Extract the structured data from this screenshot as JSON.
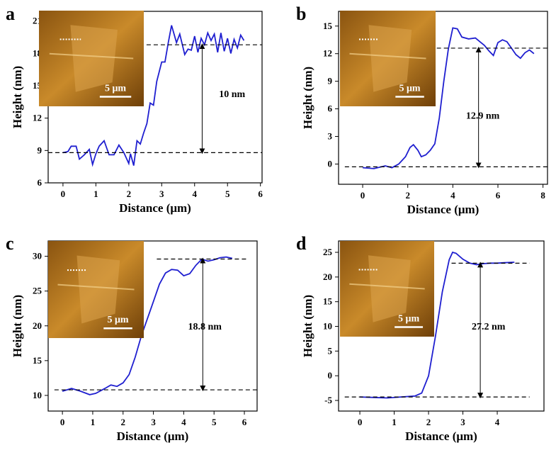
{
  "chart_data": [
    {
      "type": "line",
      "panel": "a",
      "xlabel": "Distance (μm)",
      "ylabel": "Height (nm)",
      "color": "#1f1fd0",
      "xlim": [
        -0.45,
        6.05
      ],
      "ylim": [
        6,
        21.9
      ],
      "xticks": [
        0,
        1,
        2,
        3,
        4,
        5,
        6
      ],
      "yticks": [
        6,
        9,
        12,
        15,
        18,
        21
      ],
      "x": [
        0,
        0.15,
        0.25,
        0.4,
        0.5,
        0.65,
        0.8,
        0.9,
        1.0,
        1.1,
        1.25,
        1.4,
        1.55,
        1.7,
        1.85,
        2.0,
        2.05,
        2.15,
        2.25,
        2.35,
        2.45,
        2.55,
        2.65,
        2.75,
        2.85,
        3.0,
        3.1,
        3.2,
        3.3,
        3.45,
        3.55,
        3.7,
        3.8,
        3.9,
        4.0,
        4.1,
        4.2,
        4.3,
        4.4,
        4.5,
        4.6,
        4.7,
        4.8,
        4.9,
        5.0,
        5.1,
        5.2,
        5.3,
        5.4,
        5.5
      ],
      "values": [
        8.8,
        8.9,
        9.4,
        9.4,
        8.2,
        8.6,
        9.1,
        7.7,
        8.7,
        9.4,
        9.9,
        8.6,
        8.6,
        9.5,
        8.8,
        7.8,
        8.7,
        7.6,
        9.9,
        9.6,
        10.6,
        11.5,
        13.4,
        13.2,
        15.4,
        17.2,
        17.2,
        19.0,
        20.6,
        19.0,
        19.8,
        17.9,
        18.4,
        18.3,
        19.6,
        18.1,
        19.4,
        18.8,
        19.9,
        19.2,
        19.8,
        18.1,
        19.9,
        18.2,
        19.4,
        18.0,
        19.3,
        18.5,
        19.7,
        19.2
      ],
      "reference_levels": [
        8.8,
        18.8
      ],
      "annotation": "10 nm",
      "inset_scale": "5 μm"
    },
    {
      "type": "line",
      "panel": "b",
      "xlabel": "Distance (μm)",
      "ylabel": "Height (nm)",
      "color": "#1f1fd0",
      "xlim": [
        -1.07,
        8.2
      ],
      "ylim": [
        -2.2,
        16.6
      ],
      "xticks": [
        0,
        2,
        4,
        6,
        8
      ],
      "yticks": [
        0,
        3,
        6,
        9,
        12,
        15
      ],
      "x": [
        0,
        0.5,
        1.0,
        1.3,
        1.6,
        1.9,
        2.1,
        2.25,
        2.45,
        2.6,
        2.8,
        3.0,
        3.2,
        3.4,
        3.6,
        3.8,
        4.0,
        4.2,
        4.4,
        4.7,
        5.0,
        5.2,
        5.4,
        5.6,
        5.8,
        6.0,
        6.2,
        6.4,
        6.6,
        6.8,
        7.0,
        7.2,
        7.4,
        7.6
      ],
      "values": [
        -0.4,
        -0.5,
        -0.2,
        -0.4,
        0,
        0.8,
        1.8,
        2.1,
        1.5,
        0.8,
        1.0,
        1.5,
        2.2,
        5,
        9,
        12.5,
        14.8,
        14.7,
        13.8,
        13.6,
        13.7,
        13.3,
        12.9,
        12.3,
        11.8,
        13.2,
        13.5,
        13.3,
        12.6,
        11.9,
        11.5,
        12.1,
        12.4,
        12.0
      ],
      "reference_levels": [
        -0.3,
        12.6
      ],
      "annotation": "12.9 nm",
      "inset_scale": "5 μm"
    },
    {
      "type": "line",
      "panel": "c",
      "xlabel": "Distance (μm)",
      "ylabel": "Height (nm)",
      "color": "#1f1fd0",
      "xlim": [
        -0.47,
        6.42
      ],
      "ylim": [
        7.75,
        32.2
      ],
      "xticks": [
        0,
        1,
        2,
        3,
        4,
        5,
        6
      ],
      "yticks": [
        10,
        15,
        20,
        25,
        30
      ],
      "x": [
        0,
        0.3,
        0.6,
        0.9,
        1.1,
        1.4,
        1.6,
        1.8,
        2.0,
        2.2,
        2.4,
        2.6,
        2.8,
        3.0,
        3.2,
        3.4,
        3.6,
        3.8,
        4.0,
        4.2,
        4.4,
        4.6,
        4.8,
        5.0,
        5.2,
        5.4,
        5.6
      ],
      "values": [
        10.6,
        11.0,
        10.6,
        10.1,
        10.3,
        11.0,
        11.5,
        11.3,
        11.8,
        13,
        15.5,
        18.5,
        21,
        23.5,
        26,
        27.6,
        28.1,
        28,
        27.2,
        27.5,
        28.7,
        29.6,
        29.3,
        29.5,
        29.8,
        29.9,
        29.7
      ],
      "reference_levels": [
        10.8,
        29.6
      ],
      "annotation": "18.8 nm",
      "inset_scale": "5 μm"
    },
    {
      "type": "line",
      "panel": "d",
      "xlabel": "Distance (μm)",
      "ylabel": "Height (nm)",
      "color": "#1f1fd0",
      "xlim": [
        -0.62,
        5.36
      ],
      "ylim": [
        -7.15,
        27.3
      ],
      "xticks": [
        0,
        1,
        2,
        3,
        4
      ],
      "yticks": [
        -5,
        0,
        5,
        10,
        15,
        20,
        25
      ],
      "x": [
        0,
        0.4,
        0.8,
        1.2,
        1.6,
        1.8,
        2.0,
        2.2,
        2.4,
        2.6,
        2.7,
        2.8,
        3.0,
        3.2,
        3.4,
        3.6,
        3.8,
        4.0,
        4.2,
        4.5
      ],
      "values": [
        -4.3,
        -4.4,
        -4.5,
        -4.3,
        -4.1,
        -3.5,
        0,
        8,
        17,
        23.5,
        25,
        24.8,
        23.6,
        22.8,
        22.5,
        22.7,
        22.8,
        22.8,
        22.9,
        23.0
      ],
      "reference_levels": [
        -4.3,
        22.8
      ],
      "annotation": "27.2 nm",
      "inset_scale": "5 μm"
    }
  ]
}
